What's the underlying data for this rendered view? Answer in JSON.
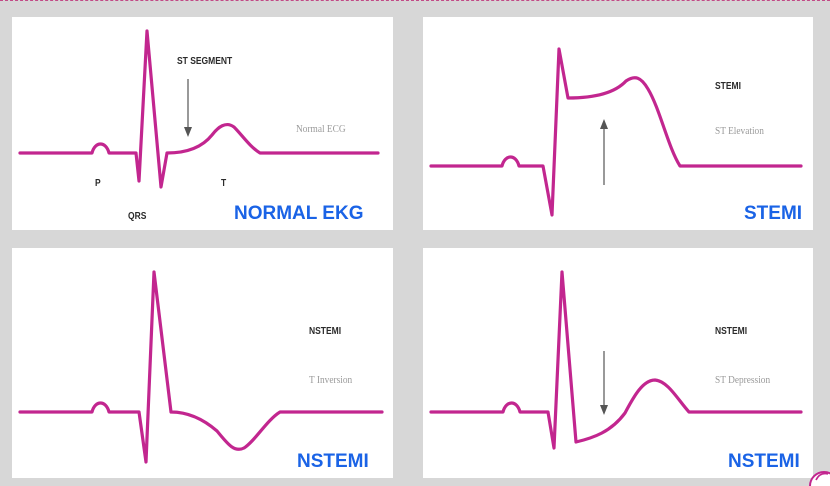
{
  "panels": {
    "normal": {
      "caption": "NORMAL EKG",
      "st_segment": "ST SEGMENT",
      "normal_ecg": "Normal ECG",
      "p": "P",
      "qrs": "QRS",
      "t": "T"
    },
    "stemi": {
      "caption": "STEMI",
      "title": "STEMI",
      "subtitle": "ST Elevation"
    },
    "nstemi_t": {
      "caption": "NSTEMI",
      "title": "NSTEMI",
      "subtitle": "T Inversion"
    },
    "nstemi_st": {
      "caption": "NSTEMI",
      "title": "NSTEMI",
      "subtitle": "ST Depression"
    }
  },
  "colors": {
    "trace": "#c2268f",
    "caption": "#1a63e6",
    "arrow": "#555555",
    "background": "#d7d7d7"
  }
}
